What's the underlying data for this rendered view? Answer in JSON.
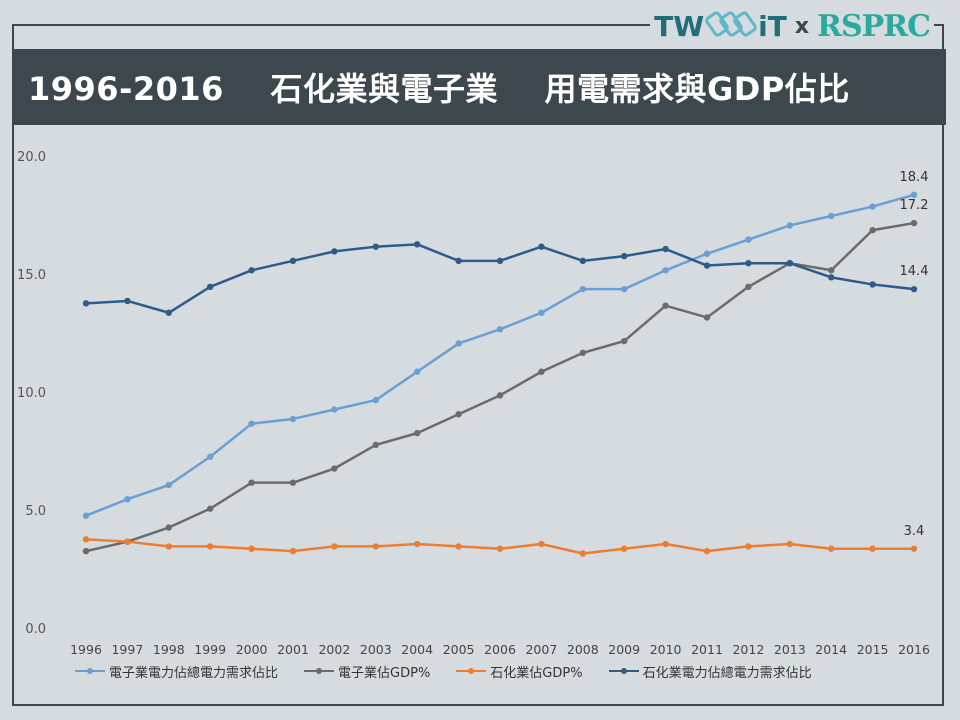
{
  "logo": {
    "part1": "TW",
    "part2": "iT",
    "x": "x",
    "part3": "RSPRC"
  },
  "title": "1996-2016    石化業與電子業    用電需求與GDP佔比",
  "colors": {
    "title_bg": "#3d474e",
    "page_bg": "#d6dbdf"
  },
  "chart_data": {
    "type": "line",
    "categories": [
      "1996",
      "1997",
      "1998",
      "1999",
      "2000",
      "2001",
      "2002",
      "2003",
      "2004",
      "2005",
      "2006",
      "2007",
      "2008",
      "2009",
      "2010",
      "2011",
      "2012",
      "2013",
      "2014",
      "2015",
      "2016"
    ],
    "ylim": [
      0,
      20
    ],
    "yticks": [
      "0.0",
      "5.0",
      "10.0",
      "15.0",
      "20.0"
    ],
    "grid": false,
    "legend_position": "bottom",
    "series": [
      {
        "name": "電子業電力佔總電力需求佔比",
        "color": "#6a9fd4",
        "values": [
          4.8,
          5.5,
          6.1,
          7.3,
          8.7,
          8.9,
          9.3,
          9.7,
          10.9,
          12.1,
          12.7,
          13.4,
          14.4,
          14.4,
          15.2,
          15.9,
          16.5,
          17.1,
          17.5,
          17.9,
          18.4
        ],
        "end_label": "18.4"
      },
      {
        "name": "電子業佔GDP%",
        "color": "#6b6b6b",
        "values": [
          3.3,
          3.7,
          4.3,
          5.1,
          6.2,
          6.2,
          6.8,
          7.8,
          8.3,
          9.1,
          9.9,
          10.9,
          11.7,
          12.2,
          13.7,
          13.2,
          14.5,
          15.5,
          15.2,
          16.9,
          17.2
        ],
        "end_label": "17.2"
      },
      {
        "name": "石化業佔GDP%",
        "color": "#ed7d31",
        "values": [
          3.8,
          3.7,
          3.5,
          3.5,
          3.4,
          3.3,
          3.5,
          3.5,
          3.6,
          3.5,
          3.4,
          3.6,
          3.2,
          3.4,
          3.6,
          3.3,
          3.5,
          3.6,
          3.4,
          3.4,
          3.4
        ],
        "end_label": "3.4"
      },
      {
        "name": "石化業電力佔總電力需求佔比",
        "color": "#2e5c8a",
        "values": [
          13.8,
          13.9,
          13.4,
          14.5,
          15.2,
          15.6,
          16.0,
          16.2,
          16.3,
          15.6,
          15.6,
          16.2,
          15.6,
          15.8,
          16.1,
          15.4,
          15.5,
          15.5,
          14.9,
          14.6,
          14.4
        ],
        "end_label": "14.4"
      }
    ]
  }
}
